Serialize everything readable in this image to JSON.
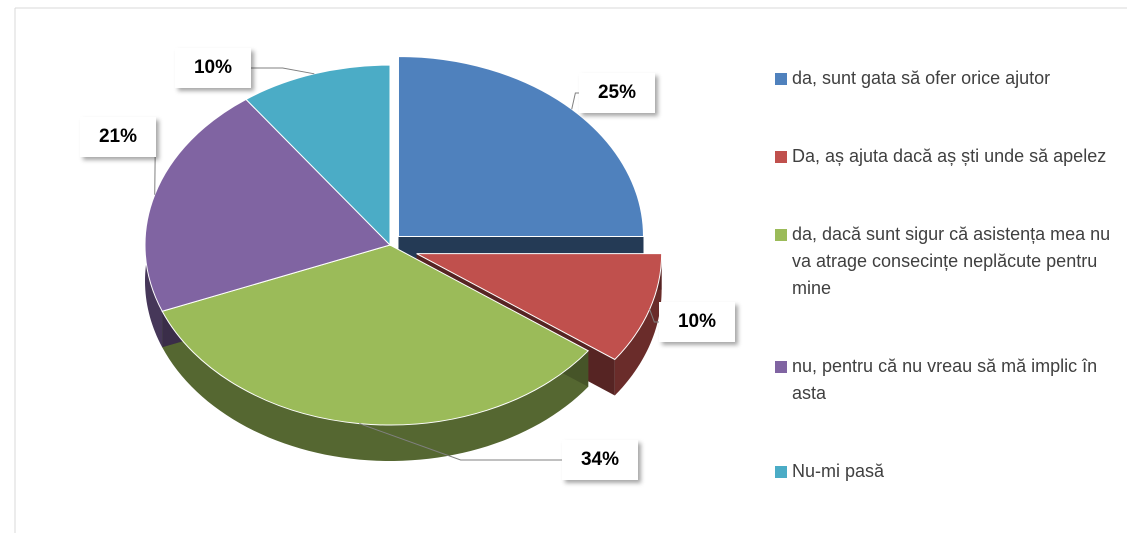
{
  "chart_data": {
    "type": "pie",
    "categories": [
      "da, sunt gata să ofer orice ajutor",
      "Da, aș ajuta dacă aș ști unde să apelez",
      "da, dacă sunt sigur că asistența mea nu va atrage consecințe neplăcute pentru mine",
      "nu, pentru că nu vreau să mă implic în asta",
      "Nu-mi pasă"
    ],
    "values": [
      25,
      10,
      34,
      21,
      10
    ],
    "value_labels": [
      "25%",
      "10%",
      "34%",
      "21%",
      "10%"
    ],
    "colors": [
      "#4f81bd",
      "#c0504d",
      "#9bbb59",
      "#8064a2",
      "#4bacc6"
    ],
    "legend": "right"
  }
}
